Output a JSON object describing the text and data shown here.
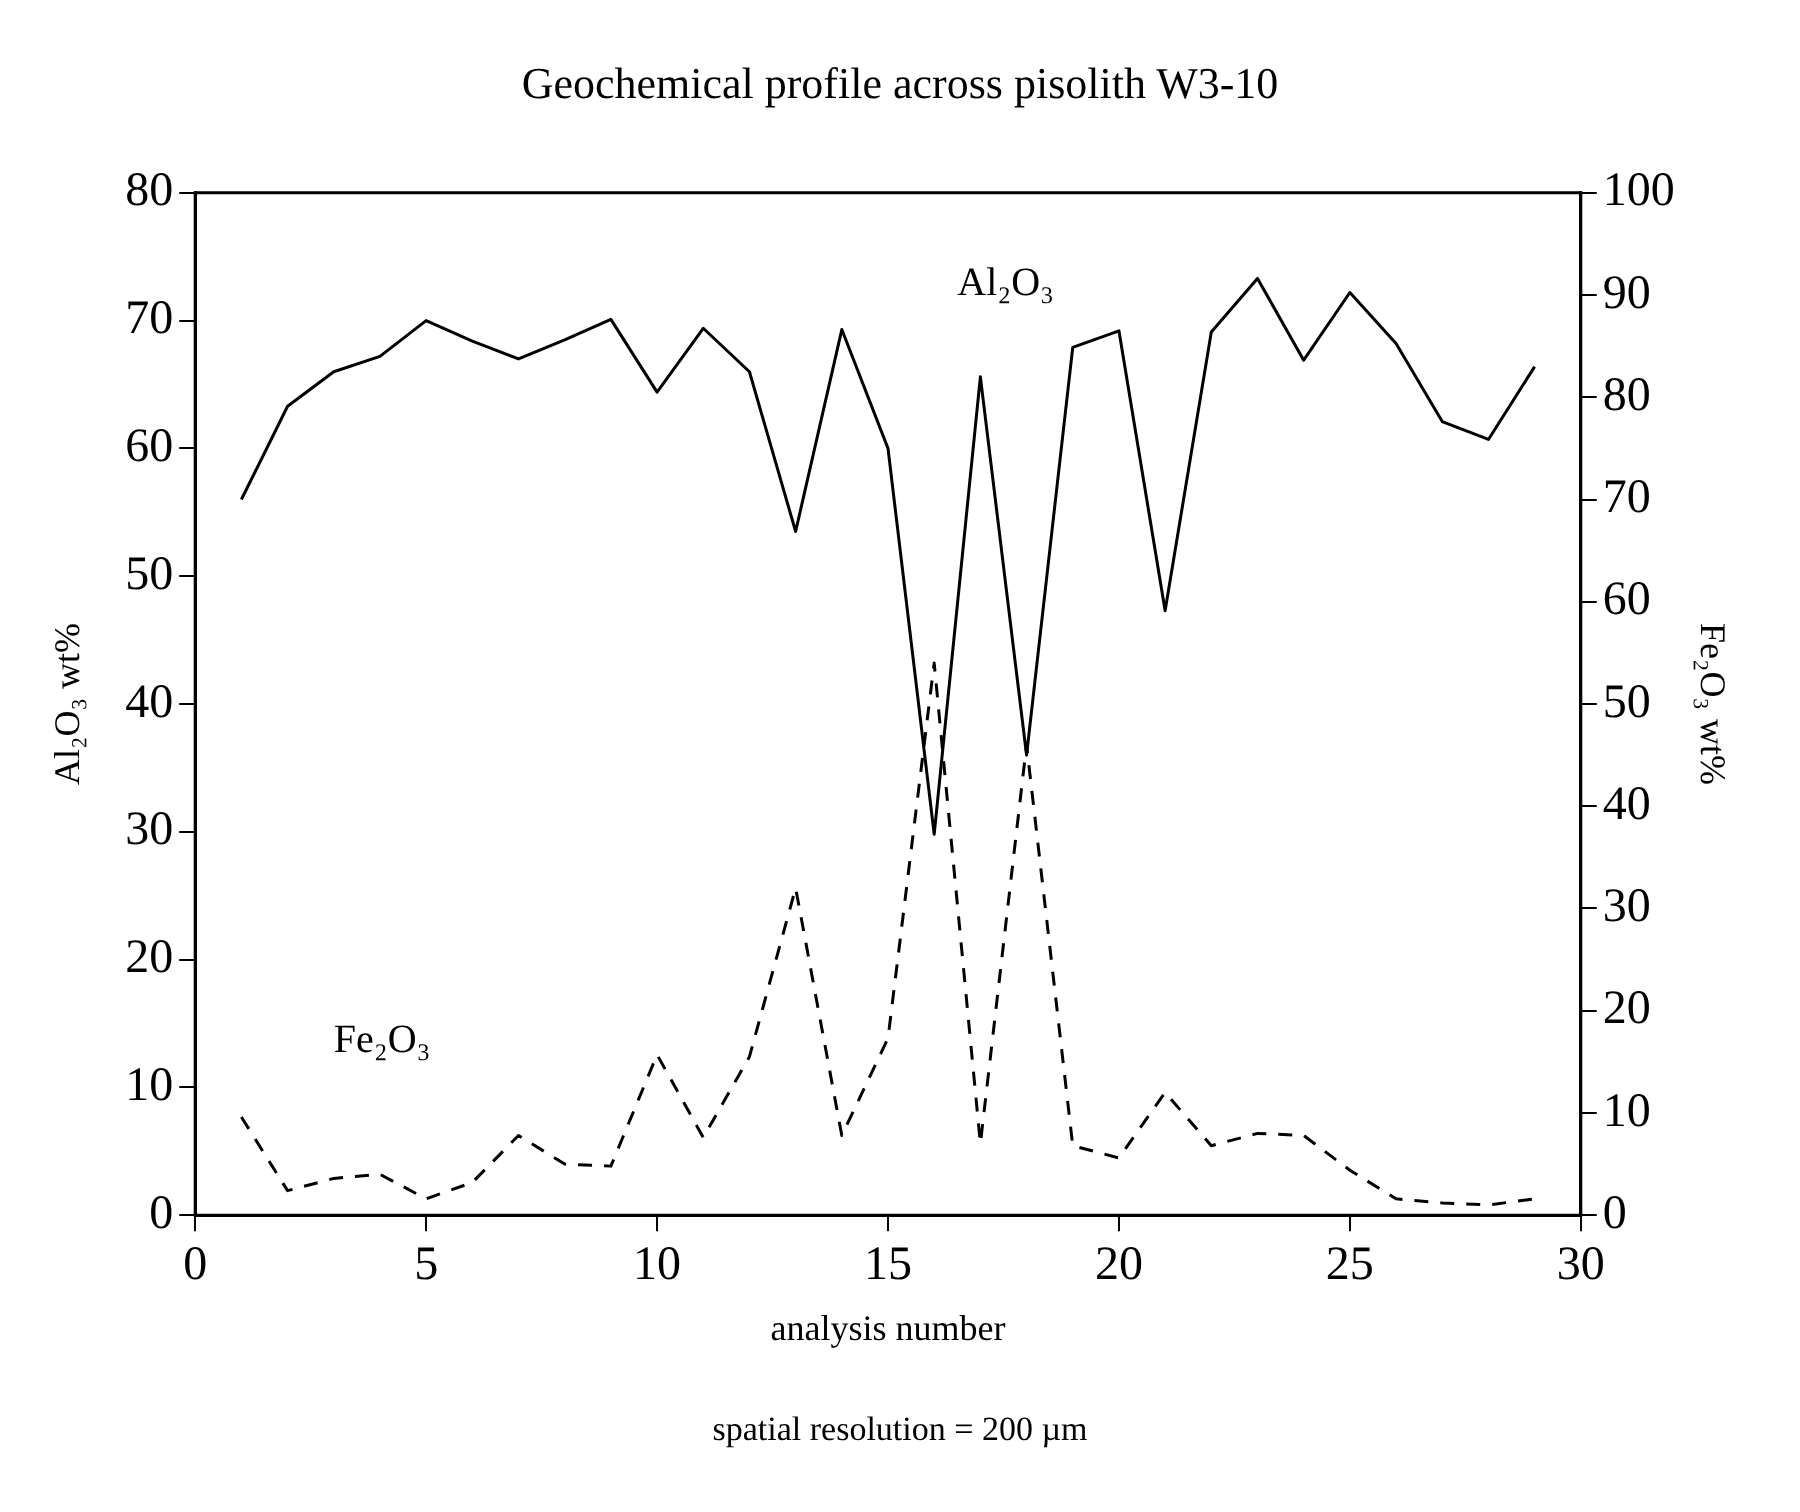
{
  "chart_data": {
    "type": "line",
    "title": "Geochemical profile across pisolith W3-10",
    "xlabel": "analysis number",
    "ylabel": "Al₂O₃ wt%",
    "y2label": "Fe₂O₃ wt%",
    "annotations": [
      "spatial resolution = 200 µm"
    ],
    "x": [
      1,
      2,
      3,
      4,
      5,
      6,
      7,
      8,
      9,
      10,
      11,
      12,
      13,
      14,
      15,
      16,
      17,
      18,
      19,
      20,
      21,
      22,
      23,
      24,
      25,
      26,
      27,
      28,
      29
    ],
    "xlim": [
      0,
      30
    ],
    "xticks": [
      0,
      5,
      10,
      15,
      20,
      25,
      30
    ],
    "ylim": [
      0,
      80
    ],
    "yticks": [
      0,
      10,
      20,
      30,
      40,
      50,
      60,
      70,
      80
    ],
    "y2lim": [
      0,
      100
    ],
    "y2ticks": [
      0,
      10,
      20,
      30,
      40,
      50,
      60,
      70,
      80,
      90,
      100
    ],
    "grid": false,
    "legend": false,
    "marker": "none",
    "series": [
      {
        "name": "Al₂O₃",
        "color": "#000000",
        "line_style": "solid",
        "values": [
          56,
          63.3,
          66,
          67.2,
          70,
          68.4,
          67,
          68.5,
          70.1,
          64.4,
          69.4,
          66,
          53.5,
          69.3,
          60,
          29.8,
          65.6,
          36,
          67.9,
          69.2,
          47.3,
          69.1,
          73.3,
          66.9,
          72.2,
          68.2,
          62.1,
          60.7,
          66.4
        ]
      },
      {
        "name": "Fe₂O₃",
        "color": "#000000",
        "line_style": "dashed",
        "axis": "y2",
        "values": [
          9.6,
          2.4,
          3.6,
          4,
          1.6,
          3.2,
          7.8,
          5,
          4.8,
          15.7,
          7.6,
          15.5,
          32,
          7.8,
          17.3,
          54,
          7,
          46,
          6.8,
          5.6,
          12,
          6.8,
          8,
          7.8,
          4.4,
          1.6,
          1.2,
          1,
          1.6
        ]
      }
    ]
  }
}
